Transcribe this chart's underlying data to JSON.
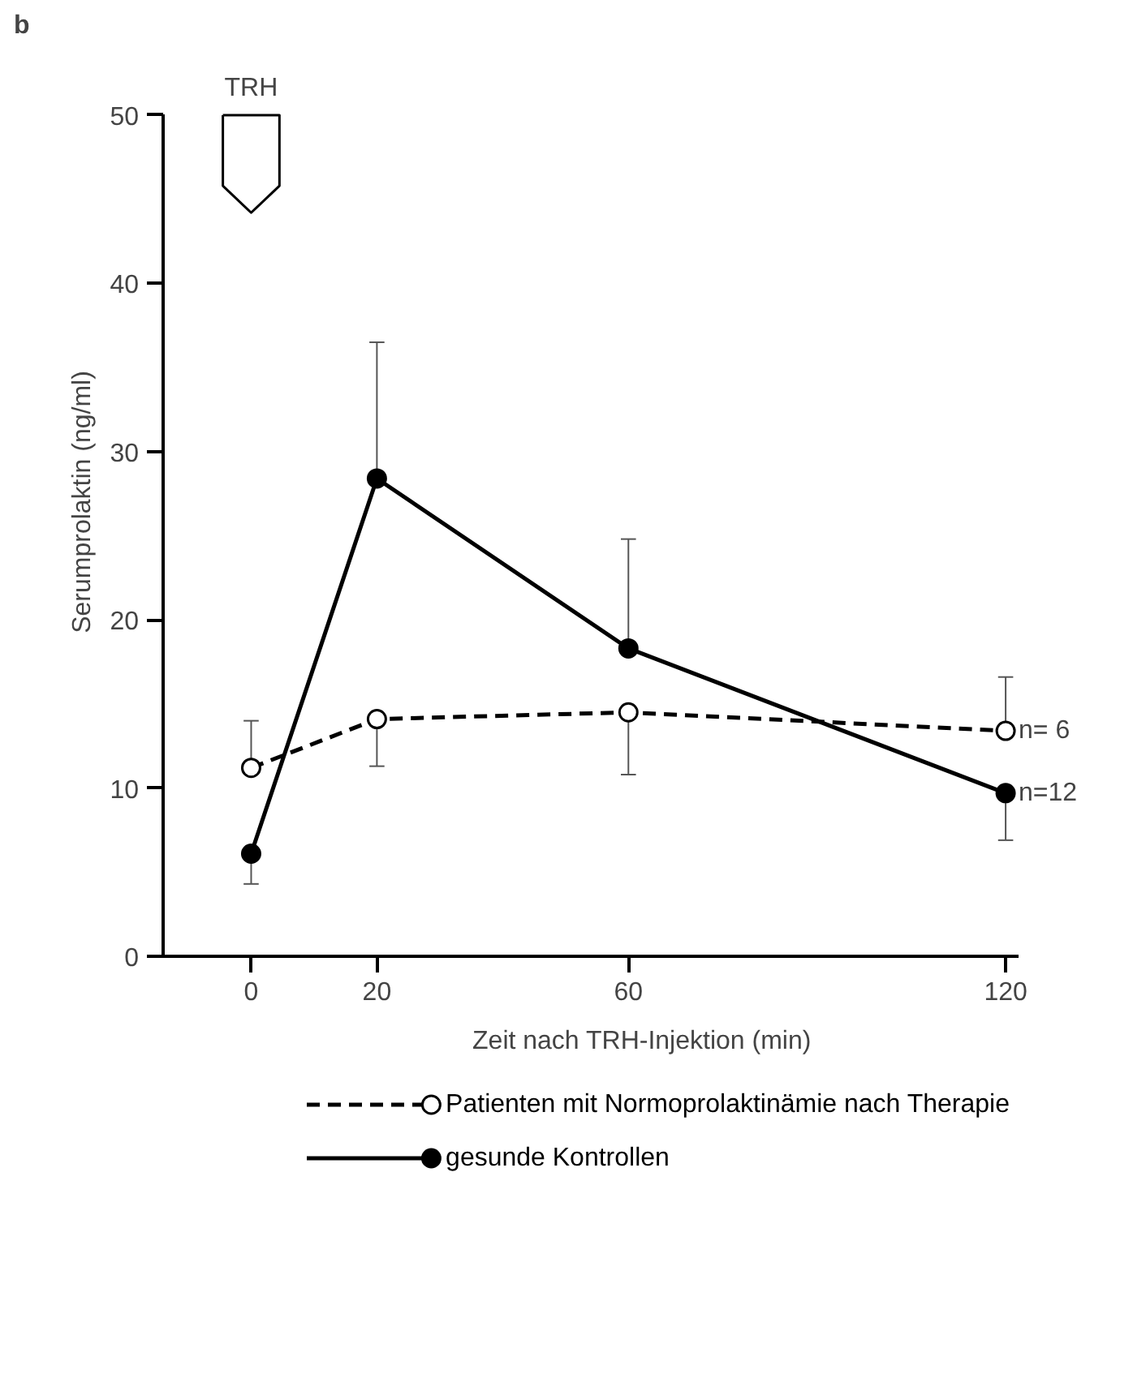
{
  "chart_data": {
    "type": "line",
    "xlabel": "Zeit nach TRH-Injektion (min)",
    "ylabel": "Serumprolaktin (ng/ml)",
    "x": [
      0,
      20,
      60,
      120
    ],
    "xlim": [
      -14,
      122
    ],
    "xticks": [
      0,
      20,
      60,
      120
    ],
    "ylim": [
      0,
      50
    ],
    "yticks": [
      0,
      10,
      20,
      30,
      40,
      50
    ],
    "grid": false,
    "legend": "bottom",
    "marker": "circle",
    "series": [
      {
        "name": "Patienten mit Normoprolaktinämie nach Therapie",
        "color": "#000000",
        "line_style": "dashed",
        "values": [
          11.2,
          14.1,
          14.5,
          13.4
        ],
        "errors": [
          [
            11.2,
            14.0
          ],
          [
            11.3,
            14.1
          ],
          [
            10.8,
            14.5
          ],
          [
            13.4,
            16.6
          ]
        ]
      },
      {
        "name": "gesunde Kontrollen",
        "color": "#000000",
        "line_style": "solid",
        "values": [
          6.1,
          28.4,
          18.3,
          9.7
        ],
        "errors": [
          [
            4.3,
            6.1
          ],
          [
            28.4,
            36.5
          ],
          [
            18.3,
            24.8
          ],
          [
            6.9,
            9.7
          ]
        ]
      }
    ],
    "annotations": [
      "b",
      "TRH",
      {
        "text": "n=  6",
        "x": 120,
        "y": 13.4
      },
      {
        "text": "n=12",
        "x": 120,
        "y": 9.7
      }
    ]
  }
}
